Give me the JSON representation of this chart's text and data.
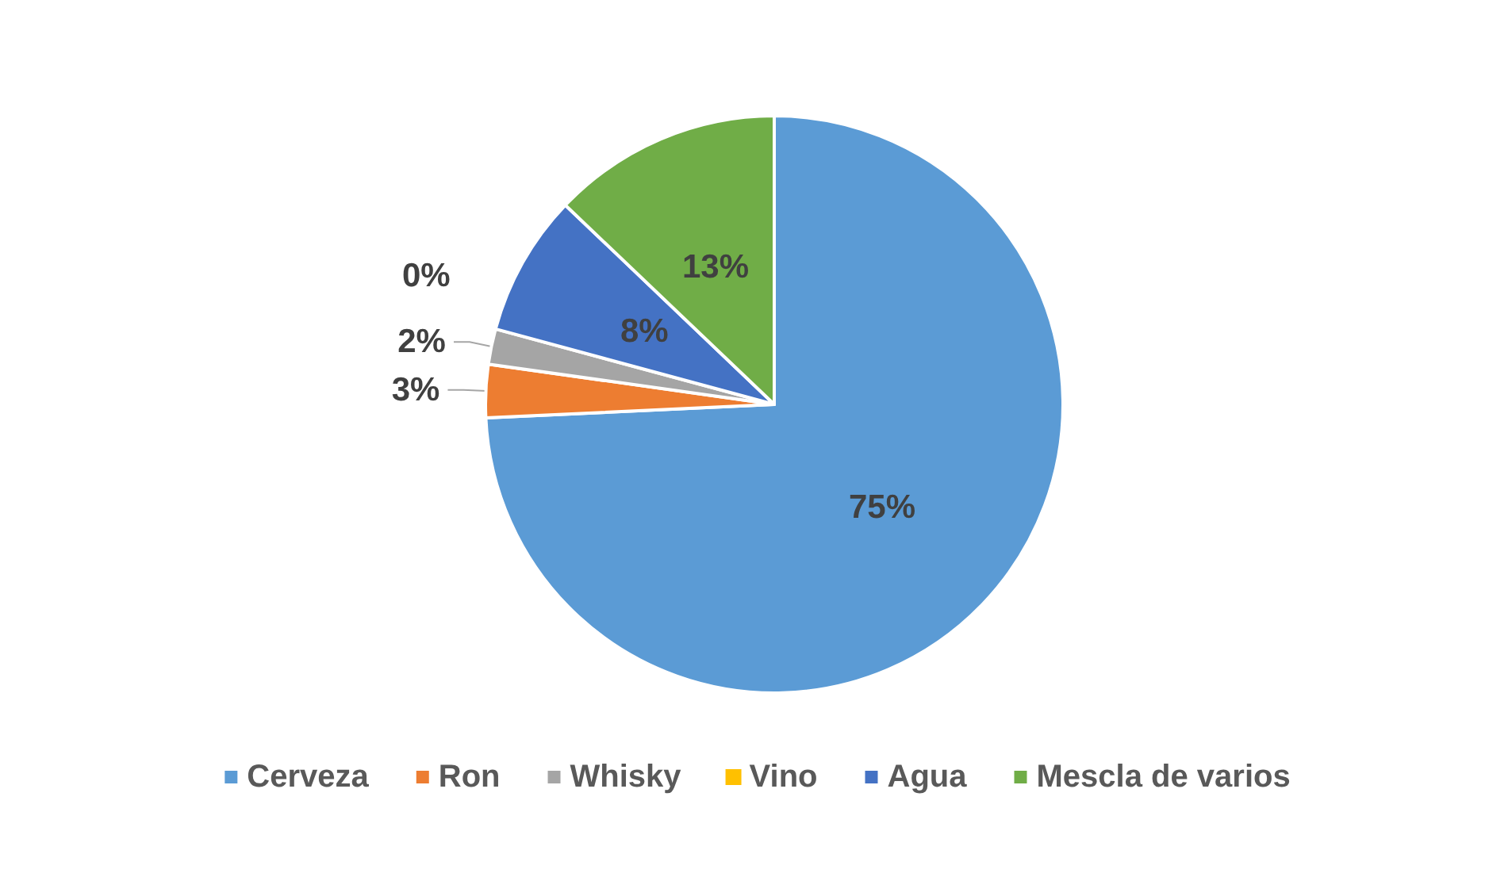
{
  "chart_data": {
    "type": "pie",
    "categories": [
      "Cerveza",
      "Ron",
      "Whisky",
      "Vino",
      "Agua",
      "Mescla de varios"
    ],
    "values": [
      75,
      3,
      2,
      0,
      8,
      13
    ],
    "value_labels": [
      "75%",
      "3%",
      "2%",
      "0%",
      "8%",
      "13%"
    ],
    "colors": [
      "#5b9bd5",
      "#ed7d31",
      "#a5a5a5",
      "#ffc000",
      "#4472c4",
      "#70ad47"
    ],
    "legend": "bottom"
  }
}
